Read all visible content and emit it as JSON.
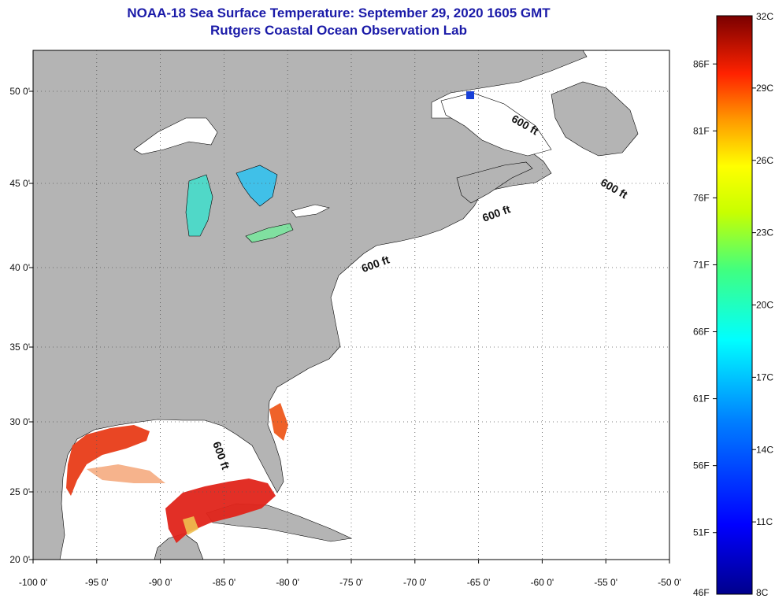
{
  "title": {
    "line1": "NOAA-18 Sea Surface Temperature:  September 29, 2020 1605 GMT",
    "line2": "Rutgers Coastal Ocean Observation Lab"
  },
  "colors": {
    "land": "#b4b4b4",
    "water": "#ffffff",
    "title": "#1a1aa8",
    "warm": "#e8201a",
    "cool": "#30c8e8"
  },
  "axes": {
    "x_ticks": [
      "-100 0'",
      "-95 0'",
      "-90 0'",
      "-85 0'",
      "-80 0'",
      "-75 0'",
      "-70 0'",
      "-65 0'",
      "-60 0'",
      "-55 0'",
      "-50 0'"
    ],
    "y_ticks": [
      "50 0'",
      "45 0'",
      "40 0'",
      "35 0'",
      "30 0'",
      "25 0'",
      "20 0'"
    ],
    "lon_range": [
      -100,
      -50
    ],
    "lat_range": [
      20,
      52
    ]
  },
  "contour_labels": [
    {
      "text": "600 ft",
      "lon": -61.5,
      "lat": 48.0
    },
    {
      "text": "600 ft",
      "lon": -54.5,
      "lat": 44.5
    },
    {
      "text": "600 ft",
      "lon": -63.5,
      "lat": 43.0
    },
    {
      "text": "600 ft",
      "lon": -73.0,
      "lat": 40.0
    },
    {
      "text": "600 ft",
      "lon": -85.5,
      "lat": 27.5
    }
  ],
  "colorbar": {
    "top_label": "32C",
    "bottom_label": "8C",
    "celsius": [
      "29C",
      "26C",
      "23C",
      "20C",
      "17C",
      "14C",
      "11C"
    ],
    "fahrenheit": [
      "86F",
      "81F",
      "76F",
      "71F",
      "66F",
      "61F",
      "56F",
      "51F"
    ],
    "bottom_f": "46F"
  }
}
